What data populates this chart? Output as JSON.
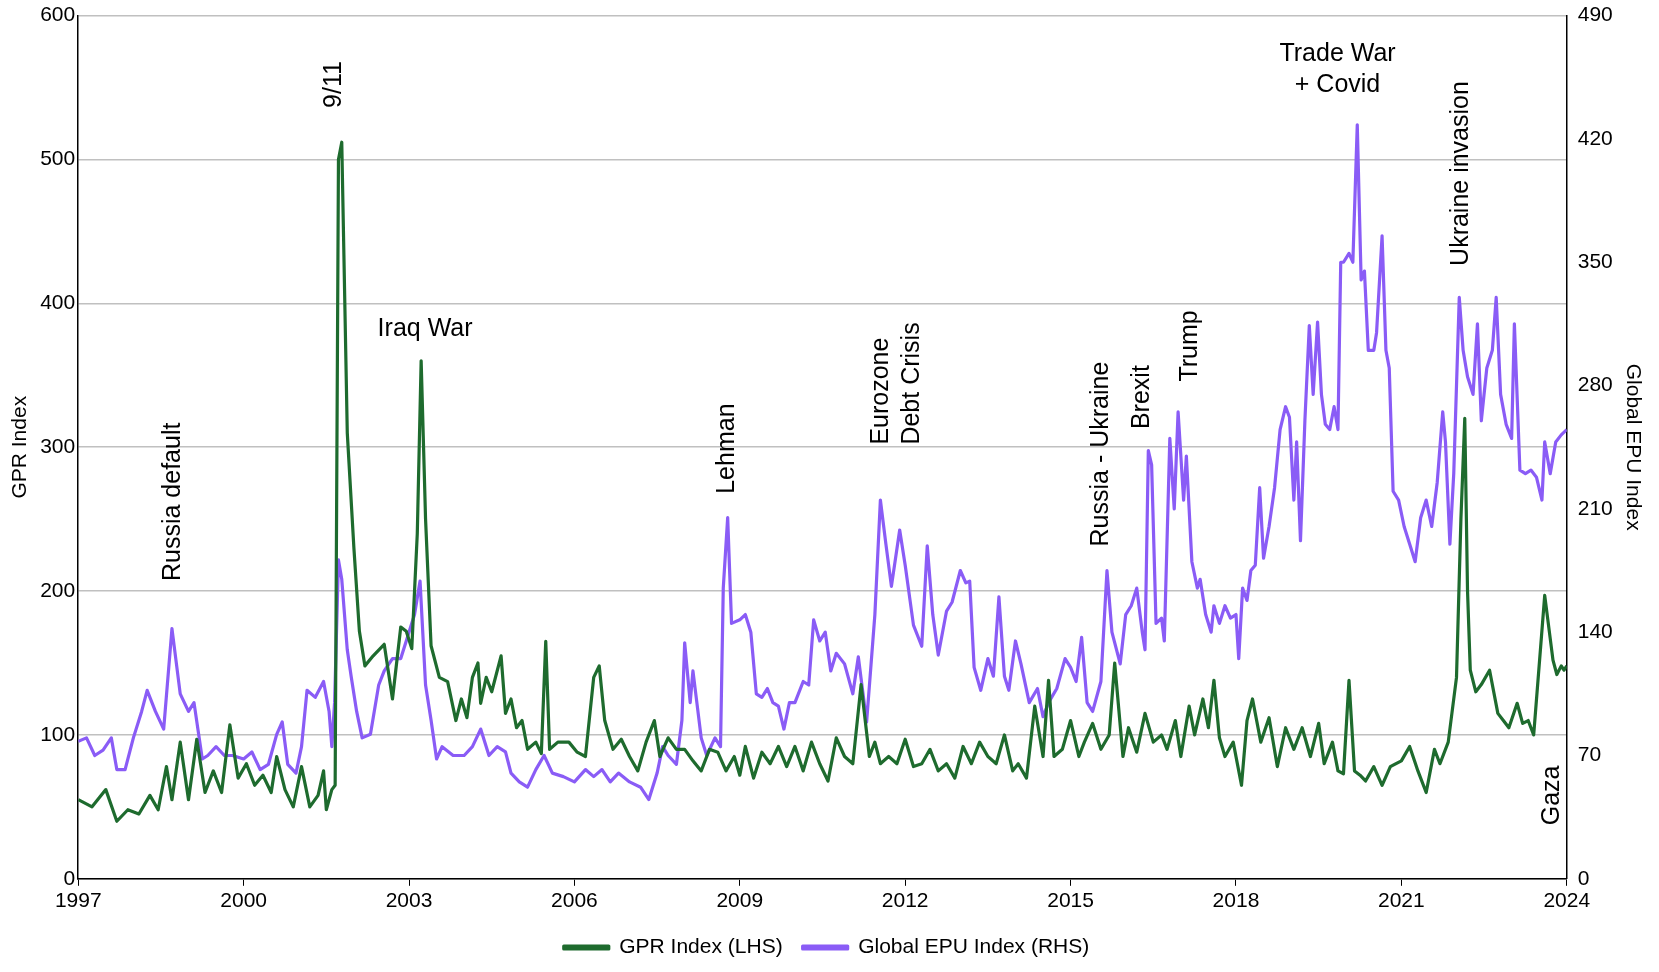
{
  "chart_data": {
    "type": "line",
    "xlim": [
      1997,
      2024
    ],
    "xticks": [
      1997,
      2000,
      2003,
      2006,
      2009,
      2012,
      2015,
      2018,
      2021,
      2024
    ],
    "ylim": [
      0,
      600
    ],
    "yticks": [
      0,
      100,
      200,
      300,
      400,
      500,
      600
    ],
    "y2lim": [
      0,
      490
    ],
    "y2ticks": [
      0,
      70,
      140,
      210,
      280,
      350,
      420,
      490
    ],
    "ylabel": "GPR Index",
    "y2label": "Global EPU Index",
    "grid": "y",
    "legend": "bottom",
    "marker": "none",
    "line_style": "solid",
    "annotations": [
      "Russia default",
      "9/11",
      "Iraq War",
      "Lehman",
      "Eurozone\nDebt Crisis",
      "Russia - Ukraine",
      "Brexit",
      "Trump",
      "Trade War\n+ Covid",
      "Ukraine invasion",
      "Gaza"
    ],
    "series": [
      {
        "name": "GPR Index (LHS)",
        "color": "#1e6b2e",
        "x": [
          1997.0,
          1997.25,
          1997.5,
          1997.7,
          1997.9,
          1998.1,
          1998.3,
          1998.45,
          1998.6,
          1998.7,
          1998.85,
          1999.0,
          1999.15,
          1999.3,
          1999.45,
          1999.6,
          1999.75,
          1999.9,
          2000.05,
          2000.2,
          2000.35,
          2000.5,
          2000.6,
          2000.75,
          2000.9,
          2001.05,
          2001.2,
          2001.35,
          2001.45,
          2001.5,
          2001.6,
          2001.66,
          2001.72,
          2001.78,
          2001.88,
          2002.0,
          2002.1,
          2002.2,
          2002.35,
          2002.55,
          2002.7,
          2002.85,
          2002.95,
          2003.05,
          2003.15,
          2003.22,
          2003.3,
          2003.4,
          2003.55,
          2003.7,
          2003.85,
          2003.95,
          2004.05,
          2004.15,
          2004.25,
          2004.3,
          2004.4,
          2004.5,
          2004.67,
          2004.75,
          2004.85,
          2004.95,
          2005.05,
          2005.15,
          2005.3,
          2005.4,
          2005.48,
          2005.55,
          2005.7,
          2005.9,
          2006.05,
          2006.2,
          2006.35,
          2006.45,
          2006.55,
          2006.7,
          2006.85,
          2007.0,
          2007.15,
          2007.3,
          2007.45,
          2007.55,
          2007.7,
          2007.85,
          2008.0,
          2008.15,
          2008.3,
          2008.45,
          2008.6,
          2008.75,
          2008.9,
          2009.0,
          2009.1,
          2009.25,
          2009.4,
          2009.55,
          2009.7,
          2009.85,
          2010.0,
          2010.15,
          2010.3,
          2010.45,
          2010.6,
          2010.75,
          2010.9,
          2011.05,
          2011.2,
          2011.35,
          2011.45,
          2011.55,
          2011.7,
          2011.85,
          2012.0,
          2012.15,
          2012.3,
          2012.45,
          2012.6,
          2012.75,
          2012.9,
          2013.05,
          2013.2,
          2013.35,
          2013.5,
          2013.65,
          2013.8,
          2013.95,
          2014.05,
          2014.2,
          2014.35,
          2014.5,
          2014.6,
          2014.7,
          2014.85,
          2015.0,
          2015.15,
          2015.25,
          2015.4,
          2015.55,
          2015.7,
          2015.8,
          2015.95,
          2016.05,
          2016.2,
          2016.35,
          2016.5,
          2016.65,
          2016.75,
          2016.9,
          2017.0,
          2017.15,
          2017.25,
          2017.4,
          2017.5,
          2017.6,
          2017.7,
          2017.8,
          2017.95,
          2018.1,
          2018.2,
          2018.3,
          2018.45,
          2018.6,
          2018.75,
          2018.9,
          2019.05,
          2019.2,
          2019.35,
          2019.5,
          2019.6,
          2019.75,
          2019.85,
          2019.95,
          2020.05,
          2020.15,
          2020.25,
          2020.35,
          2020.5,
          2020.65,
          2020.8,
          2021.0,
          2021.15,
          2021.3,
          2021.45,
          2021.6,
          2021.7,
          2021.85,
          2022.0,
          2022.08,
          2022.15,
          2022.2,
          2022.25,
          2022.35,
          2022.45,
          2022.6,
          2022.75,
          2022.85,
          2022.95,
          2023.1,
          2023.2,
          2023.3,
          2023.4,
          2023.6,
          2023.75,
          2023.82,
          2023.9,
          2023.95,
          2024.0
        ],
        "values": [
          55,
          50,
          62,
          40,
          48,
          45,
          58,
          48,
          78,
          55,
          95,
          55,
          97,
          60,
          75,
          60,
          107,
          70,
          80,
          65,
          72,
          60,
          85,
          62,
          50,
          78,
          50,
          58,
          75,
          48,
          62,
          65,
          500,
          512,
          310,
          230,
          172,
          148,
          155,
          163,
          125,
          175,
          172,
          160,
          240,
          360,
          250,
          162,
          140,
          137,
          110,
          125,
          112,
          140,
          150,
          122,
          140,
          130,
          155,
          115,
          125,
          105,
          110,
          90,
          95,
          87,
          165,
          90,
          95,
          95,
          88,
          85,
          140,
          148,
          110,
          90,
          97,
          85,
          75,
          95,
          110,
          85,
          98,
          90,
          90,
          82,
          75,
          90,
          88,
          75,
          85,
          72,
          92,
          70,
          88,
          80,
          92,
          78,
          92,
          75,
          95,
          80,
          68,
          98,
          85,
          80,
          135,
          85,
          95,
          80,
          85,
          80,
          97,
          78,
          80,
          90,
          75,
          80,
          70,
          92,
          80,
          95,
          85,
          80,
          100,
          75,
          80,
          70,
          120,
          85,
          138,
          85,
          90,
          110,
          85,
          95,
          108,
          90,
          100,
          150,
          85,
          105,
          88,
          115,
          95,
          100,
          90,
          110,
          85,
          120,
          100,
          125,
          105,
          138,
          98,
          85,
          95,
          65,
          110,
          125,
          95,
          112,
          78,
          105,
          90,
          105,
          85,
          108,
          80,
          95,
          75,
          73,
          138,
          75,
          72,
          68,
          78,
          65,
          78,
          82,
          92,
          75,
          60,
          90,
          80,
          95,
          140,
          250,
          320,
          200,
          145,
          130,
          135,
          145,
          115,
          110,
          105,
          122,
          108,
          110,
          100,
          197,
          152,
          142,
          148,
          145,
          148
        ]
      },
      {
        "name": "Global EPU Index (RHS)",
        "color": "#8a5cf6",
        "axis": "y2",
        "x": [
          1997.0,
          1997.15,
          1997.3,
          1997.45,
          1997.6,
          1997.7,
          1997.85,
          1998.0,
          1998.15,
          1998.25,
          1998.4,
          1998.55,
          1998.7,
          1998.85,
          1999.0,
          1999.1,
          1999.25,
          1999.35,
          1999.5,
          1999.65,
          1999.8,
          2000.0,
          2000.15,
          2000.3,
          2000.45,
          2000.6,
          2000.7,
          2000.8,
          2000.95,
          2001.05,
          2001.15,
          2001.3,
          2001.45,
          2001.55,
          2001.6,
          2001.65,
          2001.72,
          2001.78,
          2001.88,
          2001.95,
          2002.05,
          2002.15,
          2002.3,
          2002.45,
          2002.55,
          2002.7,
          2002.85,
          2002.95,
          2003.1,
          2003.2,
          2003.3,
          2003.4,
          2003.5,
          2003.6,
          2003.8,
          2004.0,
          2004.15,
          2004.3,
          2004.45,
          2004.6,
          2004.75,
          2004.85,
          2005.0,
          2005.15,
          2005.3,
          2005.45,
          2005.6,
          2005.8,
          2006.0,
          2006.2,
          2006.35,
          2006.5,
          2006.65,
          2006.8,
          2007.0,
          2007.2,
          2007.35,
          2007.5,
          2007.6,
          2007.7,
          2007.85,
          2007.95,
          2008.0,
          2008.1,
          2008.15,
          2008.3,
          2008.4,
          2008.55,
          2008.65,
          2008.7,
          2008.78,
          2008.85,
          2009.0,
          2009.1,
          2009.2,
          2009.3,
          2009.4,
          2009.5,
          2009.6,
          2009.7,
          2009.8,
          2009.9,
          2010.0,
          2010.15,
          2010.25,
          2010.34,
          2010.45,
          2010.55,
          2010.65,
          2010.75,
          2010.9,
          2011.05,
          2011.15,
          2011.3,
          2011.45,
          2011.55,
          2011.65,
          2011.75,
          2011.9,
          2012.0,
          2012.15,
          2012.3,
          2012.4,
          2012.5,
          2012.6,
          2012.75,
          2012.85,
          2013.0,
          2013.1,
          2013.17,
          2013.25,
          2013.37,
          2013.5,
          2013.6,
          2013.7,
          2013.8,
          2013.88,
          2014.0,
          2014.1,
          2014.25,
          2014.4,
          2014.5,
          2014.6,
          2014.75,
          2014.9,
          2015.0,
          2015.1,
          2015.2,
          2015.3,
          2015.4,
          2015.55,
          2015.66,
          2015.75,
          2015.9,
          2016.0,
          2016.1,
          2016.2,
          2016.3,
          2016.35,
          2016.41,
          2016.47,
          2016.55,
          2016.65,
          2016.7,
          2016.8,
          2016.88,
          2016.95,
          2017.05,
          2017.1,
          2017.2,
          2017.3,
          2017.35,
          2017.45,
          2017.55,
          2017.6,
          2017.7,
          2017.8,
          2017.9,
          2018.0,
          2018.05,
          2018.12,
          2018.2,
          2018.27,
          2018.35,
          2018.43,
          2018.5,
          2018.6,
          2018.7,
          2018.8,
          2018.9,
          2018.97,
          2019.05,
          2019.1,
          2019.17,
          2019.25,
          2019.33,
          2019.4,
          2019.48,
          2019.55,
          2019.62,
          2019.7,
          2019.78,
          2019.85,
          2019.9,
          2019.95,
          2020.05,
          2020.12,
          2020.2,
          2020.27,
          2020.33,
          2020.4,
          2020.5,
          2020.55,
          2020.65,
          2020.72,
          2020.78,
          2020.85,
          2020.95,
          2021.05,
          2021.15,
          2021.25,
          2021.35,
          2021.45,
          2021.55,
          2021.65,
          2021.75,
          2021.8,
          2021.88,
          2021.95,
          2022.05,
          2022.12,
          2022.2,
          2022.3,
          2022.38,
          2022.45,
          2022.55,
          2022.65,
          2022.72,
          2022.8,
          2022.9,
          2023.0,
          2023.05,
          2023.15,
          2023.25,
          2023.35,
          2023.45,
          2023.55,
          2023.6,
          2023.7,
          2023.8,
          2023.9,
          2024.0
        ],
        "values": [
          78,
          80,
          70,
          73,
          80,
          62,
          62,
          80,
          95,
          107,
          95,
          85,
          142,
          105,
          95,
          100,
          68,
          70,
          75,
          70,
          70,
          68,
          72,
          62,
          65,
          82,
          89,
          65,
          60,
          75,
          107,
          103,
          112,
          95,
          75,
          100,
          181,
          170,
          130,
          115,
          95,
          80,
          82,
          110,
          118,
          125,
          125,
          135,
          150,
          169,
          110,
          90,
          68,
          75,
          70,
          70,
          75,
          85,
          70,
          75,
          72,
          60,
          55,
          52,
          62,
          70,
          60,
          58,
          55,
          62,
          58,
          62,
          55,
          60,
          55,
          52,
          45,
          60,
          75,
          70,
          65,
          90,
          134,
          100,
          118,
          80,
          70,
          80,
          75,
          165,
          205,
          145,
          147,
          150,
          140,
          105,
          103,
          108,
          100,
          98,
          85,
          100,
          100,
          112,
          110,
          147,
          135,
          140,
          118,
          128,
          122,
          105,
          126,
          89,
          150,
          215,
          190,
          166,
          198,
          178,
          144,
          132,
          189,
          150,
          127,
          152,
          157,
          175,
          168,
          169,
          120,
          107,
          125,
          115,
          160,
          115,
          107,
          135,
          122,
          100,
          108,
          92,
          100,
          108,
          125,
          120,
          112,
          137,
          100,
          95,
          112,
          175,
          140,
          122,
          150,
          155,
          165,
          140,
          130,
          243,
          235,
          145,
          148,
          135,
          250,
          210,
          265,
          215,
          240,
          180,
          165,
          170,
          150,
          140,
          155,
          145,
          155,
          148,
          150,
          125,
          165,
          158,
          175,
          178,
          222,
          182,
          200,
          222,
          255,
          268,
          262,
          215,
          248,
          192,
          260,
          314,
          275,
          316,
          275,
          258,
          255,
          268,
          255,
          350,
          350,
          355,
          350,
          428,
          340,
          345,
          300,
          300,
          310,
          365,
          300,
          290,
          220,
          215,
          200,
          190,
          180,
          205,
          215,
          200,
          225,
          265,
          248,
          190,
          230,
          330,
          300,
          285,
          275,
          315,
          260,
          290,
          300,
          330,
          275,
          258,
          250,
          315,
          232,
          230,
          232,
          228,
          215,
          248,
          230,
          248,
          252,
          255
        ]
      }
    ]
  }
}
